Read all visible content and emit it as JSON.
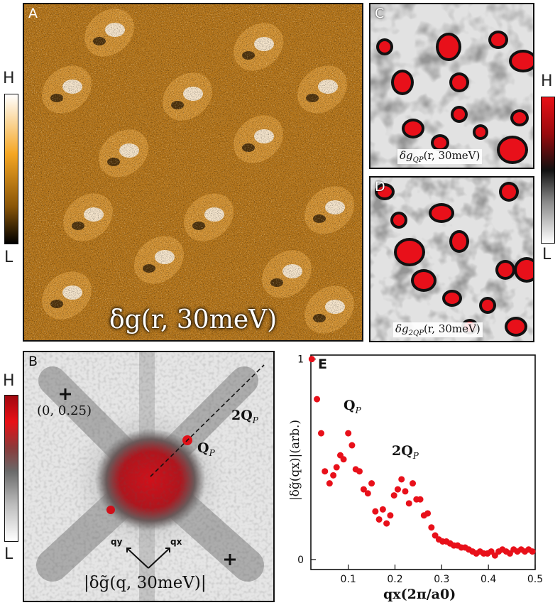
{
  "panels": {
    "A": {
      "letter": "A",
      "caption": "δg(r, 30meV)",
      "colorbar_high": "H",
      "colorbar_low": "L"
    },
    "B": {
      "letter": "B",
      "caption": "|δg̃(q, 30meV)|",
      "label_coord": "(0, 0.25)",
      "label_2qp": "2Q",
      "label_qp": "Q",
      "sub_p": "P",
      "axis_qy": "qy",
      "axis_qx": "qx",
      "colorbar_high": "H",
      "colorbar_low": "L"
    },
    "C": {
      "letter": "C",
      "caption": "δg",
      "caption_sub": "QP",
      "caption_tail": "(r, 30meV)"
    },
    "D": {
      "letter": "D",
      "caption": "δg",
      "caption_sub": "2QP",
      "caption_tail": "(r, 30meV)"
    },
    "CD": {
      "colorbar_high": "H",
      "colorbar_low": "L"
    },
    "E": {
      "letter": "E",
      "label_qp": "Q",
      "label_2qp": "2Q",
      "sub_p": "P"
    }
  },
  "colors": {
    "orange": "#e38a10",
    "red": "#e8101a",
    "black": "#111111"
  },
  "chart_data": {
    "type": "scatter",
    "xlabel": "qx(2π/a0)",
    "ylabel": "|δg̃(qx)|(arb.)",
    "xlim": [
      0.02,
      0.5
    ],
    "ylim": [
      -0.05,
      1.02
    ],
    "xticks": [
      0.1,
      0.2,
      0.3,
      0.4,
      0.5
    ],
    "xtick_labels": [
      "0.1",
      "0.2",
      "0.3",
      "0.4",
      "0.5"
    ],
    "yticks": [
      0,
      1
    ],
    "ytick_labels": [
      "0",
      "1"
    ],
    "series": [
      {
        "color": "#e8101a",
        "x": [
          0.022,
          0.033,
          0.042,
          0.05,
          0.06,
          0.068,
          0.075,
          0.083,
          0.09,
          0.1,
          0.108,
          0.116,
          0.124,
          0.133,
          0.142,
          0.15,
          0.158,
          0.166,
          0.174,
          0.182,
          0.19,
          0.198,
          0.206,
          0.214,
          0.222,
          0.23,
          0.238,
          0.246,
          0.254,
          0.262,
          0.27,
          0.278,
          0.286,
          0.294,
          0.302,
          0.31,
          0.318,
          0.326,
          0.334,
          0.342,
          0.35,
          0.358,
          0.366,
          0.374,
          0.382,
          0.39,
          0.398,
          0.406,
          0.414,
          0.422,
          0.43,
          0.438,
          0.446,
          0.454,
          0.462,
          0.47,
          0.478,
          0.486,
          0.494
        ],
        "y": [
          1.0,
          0.8,
          0.63,
          0.44,
          0.38,
          0.42,
          0.46,
          0.52,
          0.5,
          0.63,
          0.57,
          0.45,
          0.44,
          0.35,
          0.33,
          0.38,
          0.24,
          0.2,
          0.25,
          0.18,
          0.22,
          0.32,
          0.35,
          0.4,
          0.34,
          0.28,
          0.38,
          0.3,
          0.3,
          0.22,
          0.23,
          0.16,
          0.12,
          0.1,
          0.09,
          0.09,
          0.08,
          0.07,
          0.07,
          0.06,
          0.06,
          0.05,
          0.04,
          0.03,
          0.04,
          0.03,
          0.03,
          0.04,
          0.02,
          0.04,
          0.05,
          0.04,
          0.03,
          0.05,
          0.04,
          0.05,
          0.04,
          0.05,
          0.04
        ]
      }
    ]
  }
}
